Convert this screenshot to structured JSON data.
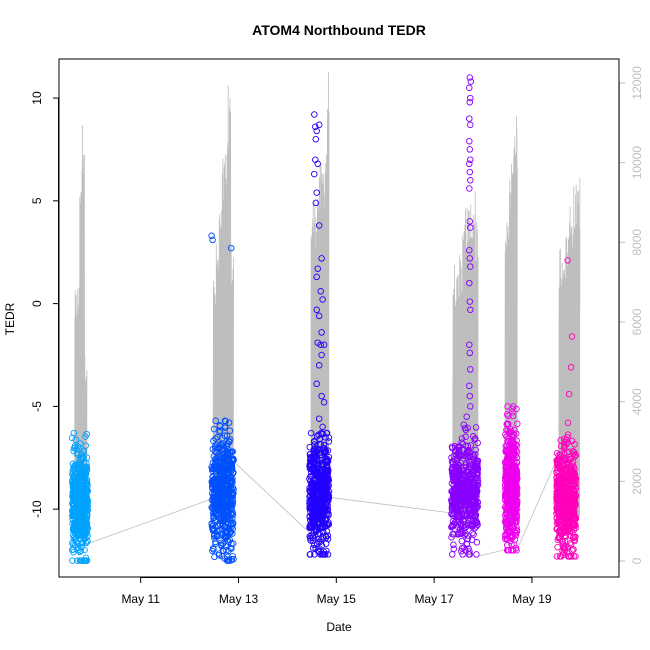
{
  "chart_data": {
    "type": "scatter",
    "title": "ATOM4 Northbound TEDR",
    "xlabel": "Date",
    "ylabel": "TEDR",
    "x_domain_days": [
      9.33,
      20.78
    ],
    "x_ticks": [
      {
        "day": 11,
        "label": "May 11"
      },
      {
        "day": 13,
        "label": "May 13"
      },
      {
        "day": 15,
        "label": "May 15"
      },
      {
        "day": 17,
        "label": "May 17"
      },
      {
        "day": 19,
        "label": "May 19"
      }
    ],
    "ylim": [
      -13.3,
      11.9
    ],
    "y_ticks": [
      -10,
      -5,
      0,
      5,
      10
    ],
    "y2lim": [
      -400,
      12600
    ],
    "y2_ticks": [
      0,
      2000,
      4000,
      6000,
      8000,
      10000,
      12000
    ],
    "grid": false,
    "legend": "none",
    "colors": {
      "secondary_axis": "#bebebe",
      "secondary_line": "#bebebe",
      "axis": "#000000"
    },
    "series": [
      {
        "day_start": 9.6,
        "day_end": 9.92,
        "color": "#00a2ff",
        "center": -9.8,
        "spread": 1.2,
        "min": -12.5,
        "max": -6.3,
        "outliers": []
      },
      {
        "day_start": 12.45,
        "day_end": 12.9,
        "color": "#0050ff",
        "center": -9.3,
        "spread": 1.5,
        "min": -12.5,
        "max": -5.7,
        "outliers": [
          [
            12.45,
            3.3
          ],
          [
            12.47,
            3.1
          ],
          [
            12.85,
            2.7
          ]
        ]
      },
      {
        "day_start": 14.45,
        "day_end": 14.85,
        "color": "#2200ff",
        "center": -9.3,
        "spread": 1.3,
        "min": -12.2,
        "max": -6.3,
        "outliers": [
          [
            14.55,
            9.2
          ],
          [
            14.57,
            8.6
          ],
          [
            14.6,
            8.4
          ],
          [
            14.58,
            8.0
          ],
          [
            14.65,
            8.7
          ],
          [
            14.57,
            7.0
          ],
          [
            14.62,
            6.8
          ],
          [
            14.55,
            6.3
          ],
          [
            14.6,
            5.4
          ],
          [
            14.58,
            4.9
          ],
          [
            14.65,
            3.8
          ],
          [
            14.7,
            2.2
          ],
          [
            14.62,
            1.7
          ],
          [
            14.6,
            1.3
          ],
          [
            14.68,
            0.6
          ],
          [
            14.72,
            0.2
          ],
          [
            14.6,
            -0.3
          ],
          [
            14.65,
            -0.6
          ],
          [
            14.7,
            -1.4
          ],
          [
            14.62,
            -1.9
          ],
          [
            14.68,
            -2.0
          ],
          [
            14.75,
            -2.0
          ],
          [
            14.7,
            -2.5
          ],
          [
            14.65,
            -3.0
          ],
          [
            14.6,
            -3.9
          ],
          [
            14.7,
            -4.5
          ],
          [
            14.75,
            -4.8
          ],
          [
            14.65,
            -5.6
          ],
          [
            14.72,
            -6.0
          ]
        ]
      },
      {
        "day_start": 17.35,
        "day_end": 17.9,
        "color": "#8800ff",
        "center": -9.3,
        "spread": 1.3,
        "min": -12.2,
        "max": -5.5,
        "outliers": [
          [
            17.73,
            11.0
          ],
          [
            17.75,
            10.8
          ],
          [
            17.72,
            10.5
          ],
          [
            17.74,
            10.0
          ],
          [
            17.73,
            9.8
          ],
          [
            17.72,
            9.0
          ],
          [
            17.74,
            8.7
          ],
          [
            17.72,
            7.9
          ],
          [
            17.73,
            7.5
          ],
          [
            17.74,
            7.0
          ],
          [
            17.72,
            6.8
          ],
          [
            17.73,
            6.4
          ],
          [
            17.74,
            6.0
          ],
          [
            17.72,
            5.6
          ],
          [
            17.73,
            4.0
          ],
          [
            17.74,
            3.7
          ],
          [
            17.72,
            2.6
          ],
          [
            17.73,
            2.2
          ],
          [
            17.74,
            1.8
          ],
          [
            17.72,
            1.0
          ],
          [
            17.73,
            0.1
          ],
          [
            17.74,
            -0.3
          ],
          [
            17.72,
            -2.0
          ],
          [
            17.73,
            -2.4
          ],
          [
            17.74,
            -3.2
          ],
          [
            17.72,
            -4.0
          ],
          [
            17.73,
            -4.5
          ],
          [
            17.74,
            -5.0
          ]
        ]
      },
      {
        "day_start": 18.45,
        "day_end": 18.7,
        "color": "#ee00ee",
        "center": -8.8,
        "spread": 1.4,
        "min": -12.0,
        "max": -5.0,
        "outliers": []
      },
      {
        "day_start": 19.5,
        "day_end": 19.9,
        "color": "#ff00bb",
        "center": -9.6,
        "spread": 1.3,
        "min": -12.3,
        "max": -5.8,
        "outliers": [
          [
            19.73,
            2.1
          ],
          [
            19.82,
            -1.6
          ],
          [
            19.8,
            -3.1
          ],
          [
            19.76,
            -4.4
          ]
        ]
      }
    ],
    "secondary_series": [
      {
        "start_day": 9.65,
        "end_day": 9.9,
        "peaks": [
          6800,
          7000,
          10000,
          11200,
          5200
        ],
        "base": 600
      },
      {
        "start_day": 12.48,
        "end_day": 12.9,
        "peaks": [
          7200,
          8000,
          9000,
          10200,
          10500,
          12200,
          8000
        ],
        "base": 1000
      },
      {
        "start_day": 14.48,
        "end_day": 14.85,
        "peaks": [
          9000,
          9200,
          9500,
          9800,
          10000,
          10200,
          10800,
          12400
        ],
        "base": 900
      },
      {
        "start_day": 17.38,
        "end_day": 17.9,
        "peaks": [
          7500,
          7200,
          7800,
          8500,
          9000,
          9200,
          9400,
          8800
        ],
        "base": 800
      },
      {
        "start_day": 18.45,
        "end_day": 18.7,
        "peaks": [
          8500,
          10000,
          11200
        ],
        "base": 800
      },
      {
        "start_day": 19.55,
        "end_day": 19.98,
        "peaks": [
          8000,
          8200,
          8500,
          9200,
          9500,
          9800
        ],
        "base": 900
      }
    ],
    "secondary_connectors": [
      [
        [
          9.72,
          350
        ],
        [
          12.55,
          1600
        ]
      ],
      [
        [
          12.9,
          2500
        ],
        [
          14.55,
          600
        ]
      ],
      [
        [
          14.85,
          1600
        ],
        [
          17.4,
          1200
        ]
      ],
      [
        [
          17.9,
          120
        ],
        [
          18.5,
          300
        ]
      ],
      [
        [
          18.7,
          300
        ],
        [
          19.6,
          2800
        ]
      ]
    ]
  }
}
